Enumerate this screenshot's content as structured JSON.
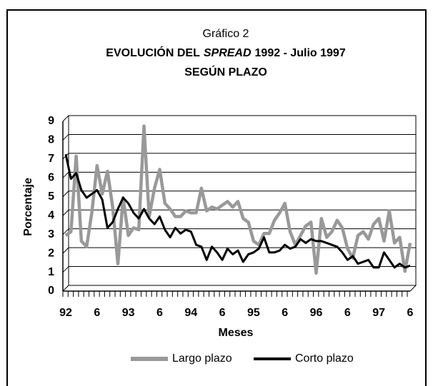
{
  "chart_data": {
    "type": "line",
    "title": "Gráfico 2",
    "subtitle": [
      "EVOLUCIÓN DEL",
      "SPREAD",
      "1992 - Julio 1997"
    ],
    "subtitle2": "SEGÚN PLAZO",
    "xlabel": "Meses",
    "ylabel": "Porcentaje",
    "categories": [
      "92",
      null,
      null,
      null,
      null,
      null,
      "6",
      null,
      null,
      null,
      null,
      null,
      "93",
      null,
      null,
      null,
      null,
      null,
      "6",
      null,
      null,
      null,
      null,
      null,
      "94",
      null,
      null,
      null,
      null,
      null,
      "6",
      null,
      null,
      null,
      null,
      null,
      "95",
      null,
      null,
      null,
      null,
      null,
      "6",
      null,
      null,
      null,
      null,
      null,
      "96",
      null,
      null,
      null,
      null,
      null,
      "6",
      null,
      null,
      null,
      null,
      null,
      "97",
      null,
      null,
      null,
      null,
      null,
      "6"
    ],
    "series": [
      {
        "name": "Largo plazo",
        "color": "#999999",
        "values": [
          2.8,
          3.0,
          7.0,
          2.5,
          2.2,
          4.0,
          6.5,
          5.0,
          6.2,
          4.3,
          1.3,
          4.8,
          2.8,
          3.2,
          3.1,
          8.6,
          3.8,
          5.3,
          6.3,
          4.5,
          4.2,
          3.8,
          3.8,
          4.1,
          4.0,
          4.0,
          5.3,
          4.1,
          4.3,
          4.2,
          4.4,
          4.6,
          4.3,
          4.6,
          3.7,
          3.5,
          2.5,
          2.3,
          2.9,
          2.9,
          3.6,
          4.0,
          4.5,
          3.0,
          2.3,
          2.8,
          3.3,
          3.5,
          0.8,
          3.7,
          2.7,
          3.0,
          3.6,
          3.2,
          2.1,
          1.6,
          2.8,
          3.0,
          2.6,
          3.4,
          3.7,
          2.5,
          4.1,
          2.4,
          2.7,
          0.9,
          2.4
        ]
      },
      {
        "name": "Corto plazo",
        "color": "#000000",
        "values": [
          7.1,
          5.8,
          6.1,
          5.2,
          4.8,
          5.0,
          5.2,
          4.7,
          3.2,
          3.5,
          4.2,
          4.8,
          4.5,
          4.0,
          3.7,
          4.2,
          3.7,
          3.4,
          3.8,
          3.1,
          2.7,
          3.2,
          2.9,
          3.1,
          3.0,
          2.3,
          2.2,
          1.5,
          2.2,
          1.9,
          1.5,
          2.1,
          1.8,
          2.0,
          1.4,
          1.8,
          1.9,
          2.1,
          2.7,
          1.9,
          1.9,
          2.0,
          2.3,
          2.1,
          2.2,
          2.6,
          2.4,
          2.6,
          2.5,
          2.5,
          2.4,
          2.3,
          2.2,
          1.9,
          1.5,
          1.7,
          1.3,
          1.4,
          1.5,
          1.1,
          1.1,
          1.9,
          1.5,
          1.1,
          1.3,
          1.1,
          1.2
        ]
      }
    ],
    "ylim": [
      0,
      9
    ],
    "yticks": [
      0,
      1,
      2,
      3,
      4,
      5,
      6,
      7,
      8,
      9
    ],
    "grid": true
  }
}
